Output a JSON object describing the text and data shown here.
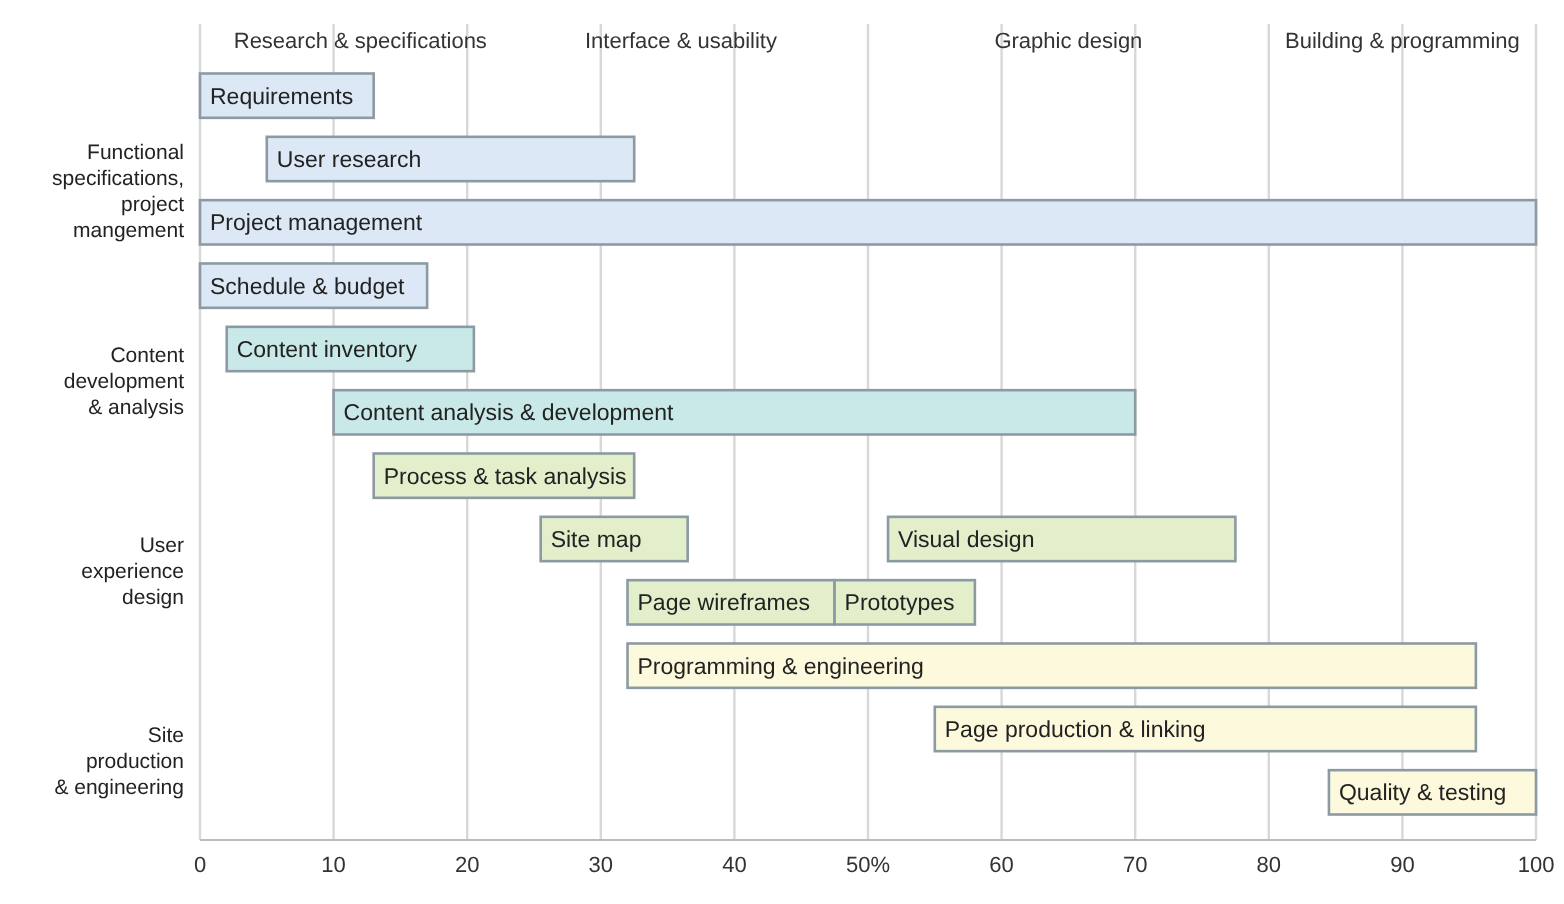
{
  "chart_data": {
    "type": "bar",
    "orientation": "horizontal",
    "categories": [
      "Requirements",
      "User research",
      "Project management",
      "Schedule & budget",
      "Content inventory",
      "Content analysis & development",
      "Process & task analysis",
      "Site map",
      "Page wireframes",
      "Programming & engineering",
      "Page production & linking",
      "Quality & testing"
    ],
    "series": [
      {
        "values": [
          13,
          27.5,
          100,
          17,
          18.5,
          60,
          19.5,
          11,
          15.5,
          63.5,
          40.5,
          15.5
        ],
        "base": [
          0,
          5,
          0,
          0,
          2,
          10,
          13,
          25.5,
          32,
          32,
          55,
          84.5
        ],
        "colors": [
          "#dce8f5",
          "#dce8f5",
          "#dce8f5",
          "#dce8f5",
          "#c9e8e8",
          "#c9e8e8",
          "#e3eecb",
          "#e3eecb",
          "#e3eecb",
          "#fcf9dc",
          "#fcf9dc",
          "#fcf9dc"
        ]
      },
      {
        "values": [
          null,
          null,
          null,
          null,
          null,
          null,
          null,
          26,
          10.5,
          null,
          null,
          null
        ],
        "base": [
          null,
          null,
          null,
          null,
          null,
          null,
          null,
          51.5,
          47.5,
          null,
          null,
          null
        ],
        "color": "#e3eecb"
      }
    ],
    "xlim": [
      0,
      100
    ],
    "xticks": [
      0,
      10,
      20,
      30,
      40,
      {
        "value": 50,
        "label": "50%"
      },
      60,
      70,
      80,
      90,
      100
    ],
    "grid": "x",
    "annotations": [
      {
        "text": "Visual design",
        "x": 51.5,
        "y": "Site map"
      },
      {
        "text": "Prototypes",
        "x": 47.5,
        "y": "Page wireframes"
      },
      "Functional\nspecifications,\nproject\nmangement",
      "Content\ndevelopment\n& analysis",
      "User\nexperience\ndesign",
      "Site\nproduction\n& engineering",
      "Research & specifications",
      "Interface & usability",
      "Graphic design",
      "Building & programming"
    ]
  }
}
